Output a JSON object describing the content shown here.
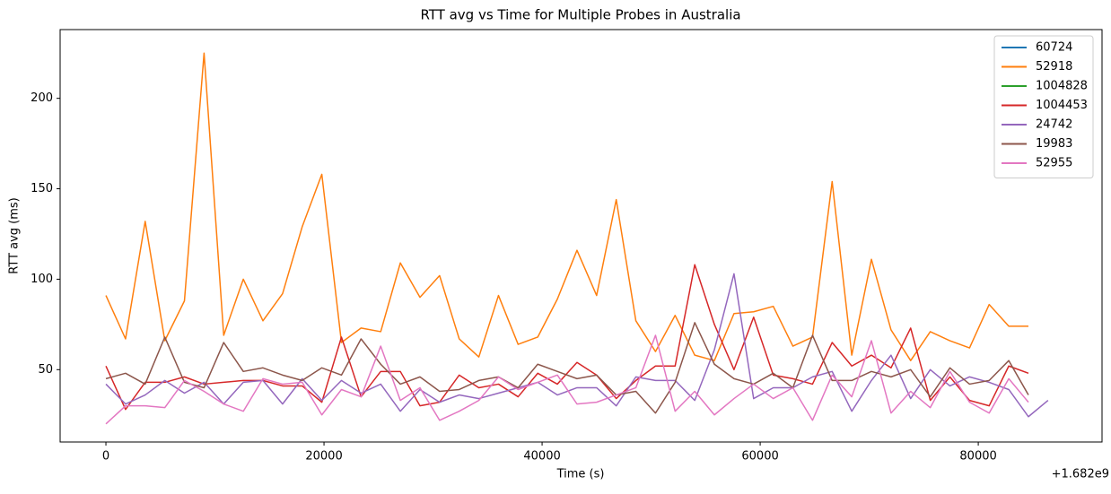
{
  "chart_data": {
    "type": "line",
    "title": "RTT avg vs Time for Multiple Probes in Australia",
    "x_label": "Time (s)",
    "y_label": "RTT avg (ms)",
    "x_offset_label": "+1.682e9",
    "x": [
      0,
      1800,
      3600,
      5400,
      7200,
      9000,
      10800,
      12600,
      14400,
      16200,
      18000,
      19800,
      21600,
      23400,
      25200,
      27000,
      28800,
      30600,
      32400,
      34200,
      36000,
      37800,
      39600,
      41400,
      43200,
      45000,
      46800,
      48600,
      50400,
      52200,
      54000,
      55800,
      57600,
      59400,
      61200,
      63000,
      64800,
      66600,
      68400,
      70200,
      72000,
      73800,
      75600,
      77400,
      79200,
      81000,
      82800,
      84600,
      86400
    ],
    "series": [
      {
        "name": "60724",
        "color": "#1f77b4",
        "values": [
          null,
          null,
          null,
          null,
          null,
          null,
          null,
          null,
          null,
          null,
          null,
          null,
          null,
          null,
          null,
          null,
          null,
          null,
          null,
          null,
          null,
          null,
          null,
          null,
          null,
          null,
          null,
          null,
          null,
          null,
          null,
          null,
          null,
          null,
          null,
          null,
          null,
          null,
          null,
          null,
          null,
          null,
          null,
          null,
          null,
          null,
          null,
          null,
          null
        ]
      },
      {
        "name": "52918",
        "color": "#ff7f0e",
        "values": [
          91,
          67,
          132,
          66,
          88,
          225,
          69,
          100,
          77,
          92,
          129,
          158,
          65,
          73,
          71,
          109,
          90,
          102,
          67,
          57,
          91,
          64,
          68,
          89,
          116,
          91,
          144,
          77,
          60,
          80,
          58,
          55,
          81,
          82,
          85,
          63,
          68,
          154,
          58,
          111,
          72,
          55,
          71,
          66,
          62,
          86,
          74,
          74,
          null
        ]
      },
      {
        "name": "1004828",
        "color": "#2ca02c",
        "values": [
          null,
          null,
          null,
          null,
          null,
          null,
          null,
          null,
          null,
          null,
          null,
          null,
          null,
          null,
          null,
          null,
          null,
          null,
          null,
          null,
          null,
          null,
          null,
          null,
          null,
          null,
          null,
          null,
          null,
          null,
          null,
          null,
          null,
          null,
          null,
          null,
          null,
          null,
          null,
          null,
          null,
          null,
          null,
          null,
          null,
          null,
          null,
          null,
          null
        ]
      },
      {
        "name": "1004453",
        "color": "#d62728",
        "values": [
          52,
          28,
          43,
          43,
          46,
          42,
          43,
          44,
          44,
          41,
          41,
          32,
          68,
          35,
          49,
          49,
          30,
          32,
          47,
          40,
          42,
          35,
          48,
          42,
          54,
          47,
          34,
          44,
          52,
          52,
          108,
          75,
          50,
          79,
          47,
          45,
          42,
          65,
          52,
          58,
          51,
          73,
          33,
          46,
          33,
          30,
          52,
          48,
          null
        ]
      },
      {
        "name": "24742",
        "color": "#9467bd",
        "values": [
          42,
          31,
          36,
          44,
          37,
          43,
          31,
          43,
          44,
          31,
          45,
          33,
          44,
          37,
          42,
          27,
          39,
          32,
          36,
          34,
          37,
          40,
          43,
          36,
          40,
          40,
          30,
          46,
          44,
          44,
          33,
          61,
          103,
          34,
          40,
          40,
          46,
          49,
          27,
          44,
          58,
          34,
          50,
          41,
          46,
          43,
          39,
          24,
          33
        ]
      },
      {
        "name": "19983",
        "color": "#8c564b",
        "values": [
          45,
          48,
          42,
          68,
          43,
          40,
          65,
          49,
          51,
          47,
          44,
          51,
          47,
          67,
          53,
          42,
          46,
          38,
          39,
          44,
          46,
          40,
          53,
          49,
          45,
          47,
          36,
          38,
          26,
          43,
          76,
          53,
          45,
          42,
          48,
          40,
          69,
          44,
          44,
          49,
          46,
          50,
          35,
          51,
          42,
          44,
          55,
          36,
          null
        ]
      },
      {
        "name": "52955",
        "color": "#e377c2",
        "values": [
          20,
          30,
          30,
          29,
          44,
          38,
          31,
          27,
          45,
          42,
          43,
          25,
          39,
          35,
          63,
          33,
          40,
          22,
          27,
          33,
          46,
          39,
          43,
          47,
          31,
          32,
          36,
          40,
          69,
          27,
          38,
          25,
          34,
          42,
          34,
          40,
          22,
          47,
          35,
          66,
          26,
          38,
          29,
          49,
          32,
          26,
          45,
          32,
          null
        ]
      }
    ],
    "xlim": [
      -4200,
      91350
    ],
    "ylim": [
      10,
      238
    ],
    "xticks": [
      0,
      20000,
      40000,
      60000,
      80000
    ],
    "yticks": [
      50,
      100,
      150,
      200
    ],
    "legend": "upper right"
  }
}
